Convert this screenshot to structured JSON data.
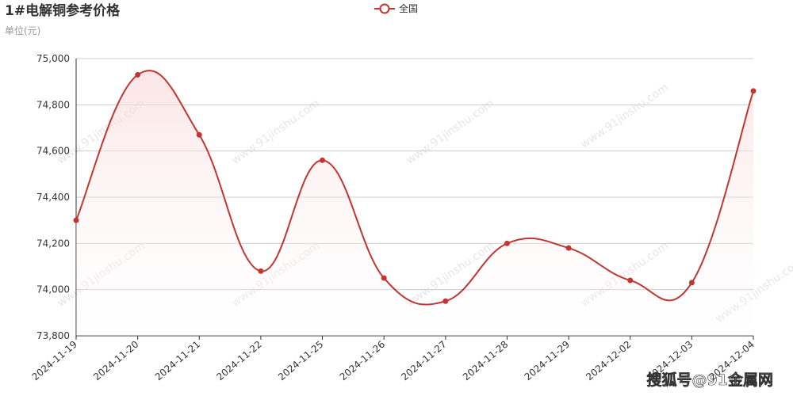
{
  "chart_data": {
    "type": "line",
    "title": "1#电解铜参考价格",
    "subtitle": "单位(元)",
    "watermark": "www.91jinshu.com",
    "credit": "搜狐号@91金属网",
    "categories": [
      "2024-11-19",
      "2024-11-20",
      "2024-11-21",
      "2024-11-22",
      "2024-11-25",
      "2024-11-26",
      "2024-11-27",
      "2024-11-28",
      "2024-11-29",
      "2024-12-02",
      "2024-12-03",
      "2024-12-04"
    ],
    "series": [
      {
        "name": "全国",
        "color": "#c23531",
        "values": [
          74300,
          74930,
          74670,
          74080,
          74560,
          74050,
          73950,
          74200,
          74180,
          74040,
          74030,
          74860
        ]
      }
    ],
    "ylim": [
      73800,
      75000
    ],
    "yticks": [
      {
        "value": 73800,
        "label": "73,800"
      },
      {
        "value": 74000,
        "label": "74,000"
      },
      {
        "value": 74200,
        "label": "74,200"
      },
      {
        "value": 74400,
        "label": "74,400"
      },
      {
        "value": 74600,
        "label": "74,600"
      },
      {
        "value": 74800,
        "label": "74,800"
      },
      {
        "value": 75000,
        "label": "75,000"
      }
    ],
    "grid": true,
    "smooth": true
  }
}
